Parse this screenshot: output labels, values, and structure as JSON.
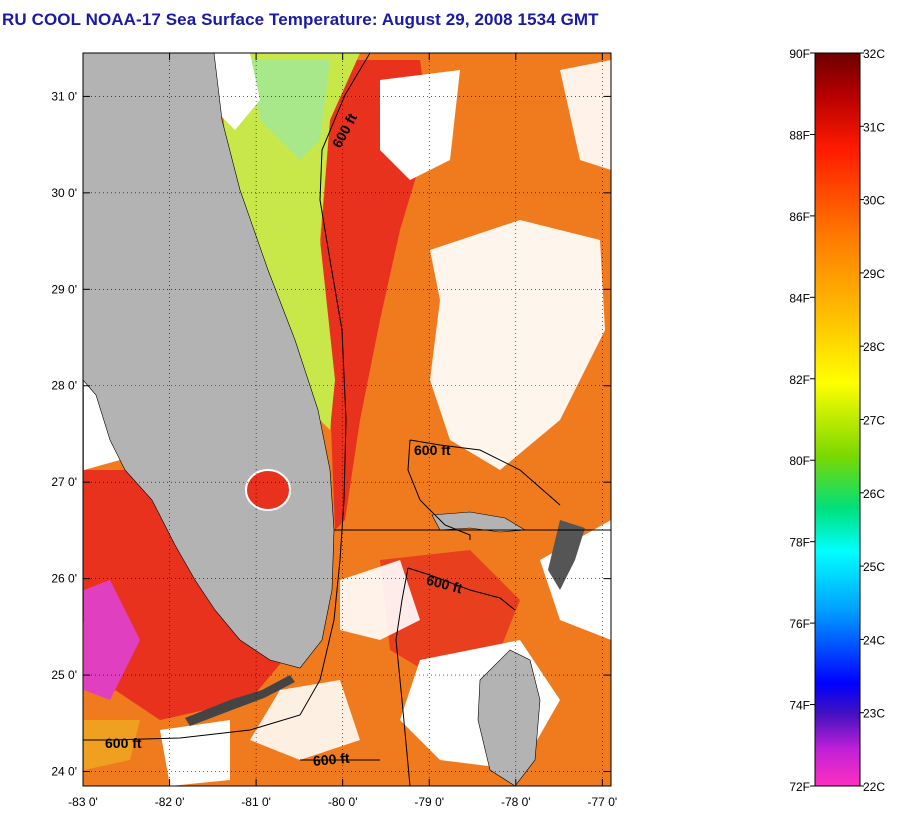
{
  "title": "RU COOL  NOAA-17  Sea Surface Temperature:  August 29, 2008 1534 GMT",
  "map": {
    "lon_ticks": [
      "-83 0'",
      "-82 0'",
      "-81 0'",
      "-80 0'",
      "-79 0'",
      "-78 0'",
      "-77 0'"
    ],
    "lat_ticks": [
      "31 0'",
      "30 0'",
      "29 0'",
      "28 0'",
      "27 0'",
      "26 0'",
      "25 0'",
      "24 0'"
    ],
    "lon_range": [
      -83,
      -76.9
    ],
    "lat_range": [
      23.85,
      31.45
    ],
    "contour_labels": [
      "600 ft",
      "600 ft",
      "600 ft",
      "600 ft",
      "600 ft"
    ],
    "colors": {
      "land": "#b3b3b3",
      "cloud": "#ffffff",
      "water_warm": "#f07a1e",
      "water_hot": "#e8321e",
      "water_cool": "#d8f04a"
    }
  },
  "colorbar": {
    "f_labels": [
      "90F",
      "88F",
      "86F",
      "84F",
      "82F",
      "80F",
      "78F",
      "76F",
      "74F",
      "72F"
    ],
    "c_labels": [
      "32C",
      "31C",
      "30C",
      "29C",
      "28C",
      "27C",
      "26C",
      "25C",
      "24C",
      "23C",
      "22C"
    ]
  }
}
